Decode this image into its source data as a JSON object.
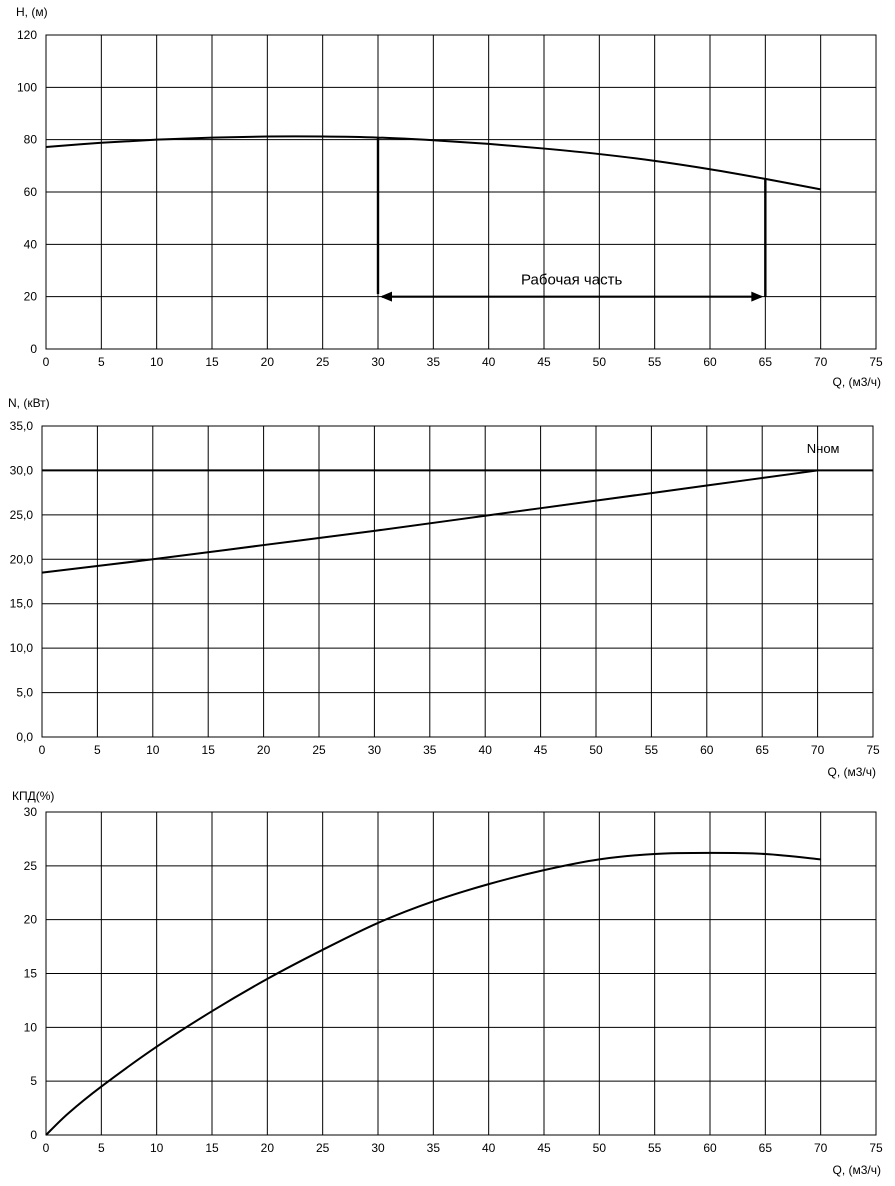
{
  "chart_data": [
    {
      "id": "head",
      "type": "line",
      "ylabel": "H, (м)",
      "xlabel": "Q, (м3/ч)",
      "xlim": [
        0,
        75
      ],
      "ylim": [
        0,
        120
      ],
      "xticks": [
        0,
        5,
        10,
        15,
        20,
        25,
        30,
        35,
        40,
        45,
        50,
        55,
        60,
        65,
        70,
        75
      ],
      "yticks": [
        0,
        20,
        40,
        60,
        80,
        100,
        120
      ],
      "ytick_labels": [
        "0",
        "20",
        "40",
        "60",
        "80",
        "100",
        "120"
      ],
      "grid": true,
      "series": [
        {
          "x": [
            0,
            5,
            10,
            15,
            20,
            25,
            30,
            35,
            40,
            45,
            50,
            55,
            60,
            65,
            70
          ],
          "values": [
            77.2,
            78.8,
            80.0,
            80.8,
            81.2,
            81.2,
            80.8,
            79.8,
            78.4,
            76.6,
            74.5,
            71.9,
            68.7,
            65.0,
            61.0
          ]
        }
      ],
      "annotations": [
        {
          "type": "vline",
          "x": 30,
          "y_from": 21,
          "y_to": 80.8
        },
        {
          "type": "vline",
          "x": 65,
          "y_from": 20,
          "y_to": 65.0
        },
        {
          "type": "double-arrow",
          "x_from": 30,
          "x_to": 65,
          "y": 20
        },
        {
          "type": "text",
          "text": "Рабочая часть",
          "x": 47.5,
          "y": 26.5
        }
      ]
    },
    {
      "id": "power",
      "type": "line",
      "ylabel": "N, (кВт)",
      "xlabel": "Q, (м3/ч)",
      "xlim": [
        0,
        75
      ],
      "ylim": [
        0,
        35
      ],
      "xticks": [
        0,
        5,
        10,
        15,
        20,
        25,
        30,
        35,
        40,
        45,
        50,
        55,
        60,
        65,
        70,
        75
      ],
      "yticks": [
        0,
        5,
        10,
        15,
        20,
        25,
        30,
        35
      ],
      "ytick_labels": [
        "0,0",
        "5,0",
        "10,0",
        "15,0",
        "20,0",
        "25,0",
        "30,0",
        "35,0"
      ],
      "grid": true,
      "series": [
        {
          "x": [
            0,
            10,
            20,
            30,
            40,
            50,
            60,
            70
          ],
          "values": [
            18.5,
            20.0,
            21.6,
            23.2,
            24.9,
            26.6,
            28.3,
            30.0
          ]
        }
      ],
      "annotations": [
        {
          "type": "hline",
          "y": 30,
          "x_from": 0,
          "x_to": 75
        },
        {
          "type": "text",
          "text": "Nном",
          "x": 70.5,
          "y": 32.5
        }
      ]
    },
    {
      "id": "efficiency",
      "type": "line",
      "ylabel": "КПД(%)",
      "xlabel": "Q, (м3/ч)",
      "xlim": [
        0,
        75
      ],
      "ylim": [
        0,
        30
      ],
      "xticks": [
        0,
        5,
        10,
        15,
        20,
        25,
        30,
        35,
        40,
        45,
        50,
        55,
        60,
        65,
        70,
        75
      ],
      "yticks": [
        0,
        5,
        10,
        15,
        20,
        25,
        30
      ],
      "ytick_labels": [
        "0",
        "5",
        "10",
        "15",
        "20",
        "25",
        "30"
      ],
      "grid": true,
      "series": [
        {
          "x": [
            0,
            2,
            5,
            10,
            15,
            20,
            25,
            30,
            35,
            40,
            45,
            50,
            55,
            60,
            65,
            70
          ],
          "values": [
            0,
            2.0,
            4.5,
            8.2,
            11.5,
            14.5,
            17.2,
            19.7,
            21.7,
            23.3,
            24.6,
            25.6,
            26.1,
            26.2,
            26.1,
            25.6
          ]
        }
      ],
      "annotations": []
    }
  ],
  "style": {
    "line_color": "#000000",
    "grid_color": "#000000"
  }
}
